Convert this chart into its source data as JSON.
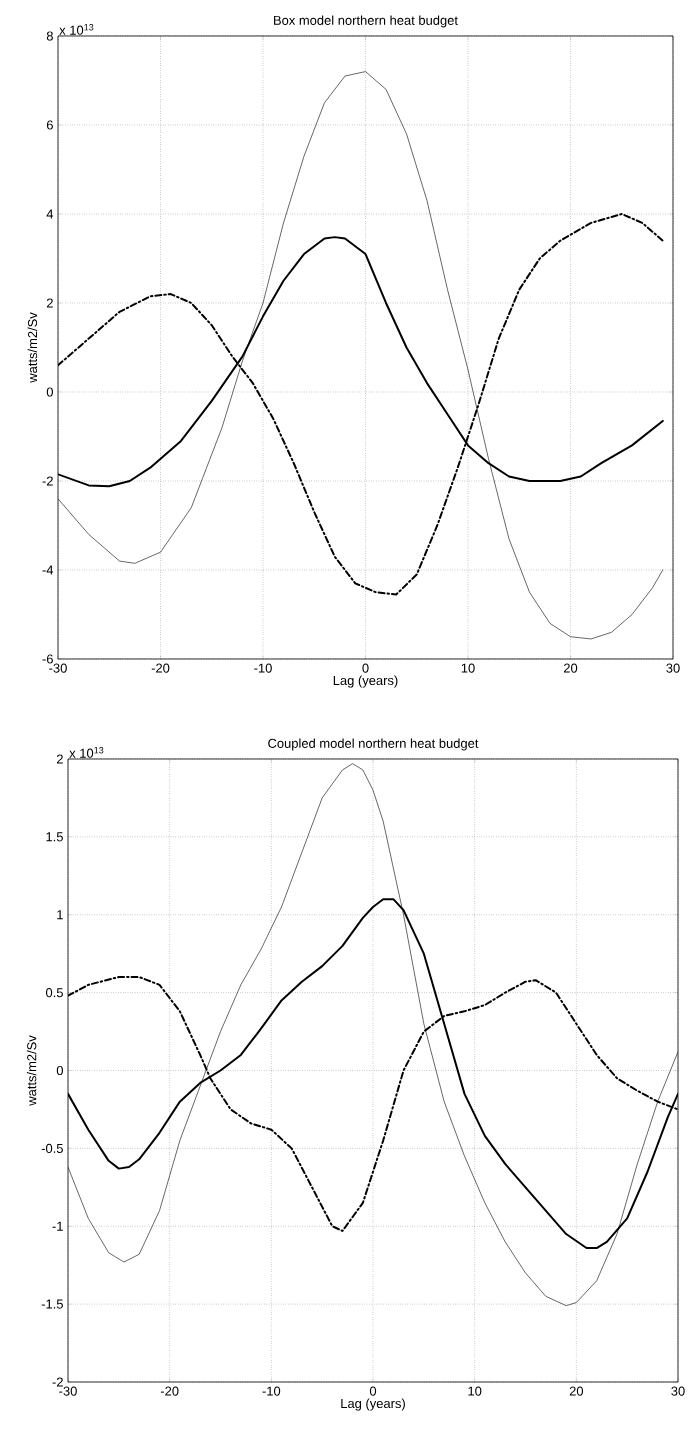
{
  "chart_data": [
    {
      "type": "line",
      "title": "Box model northern heat budget",
      "xlabel": "Lag (years)",
      "ylabel": "watts/m2/Sv",
      "annotations": [
        "x 10$^{13}$"
      ],
      "xlim": [
        -30,
        30
      ],
      "xticks": [
        -30,
        -20,
        -10,
        0,
        10,
        20,
        30
      ],
      "ylim": [
        -6,
        8
      ],
      "yticks": [
        -6,
        -4,
        -2,
        0,
        2,
        4,
        6,
        8
      ],
      "grid": true,
      "marker": "none",
      "series": [
        {
          "color": "#000000",
          "line_style": "solid",
          "x": [
            -30,
            -27,
            -24,
            -22.5,
            -20,
            -17,
            -14,
            -12,
            -10,
            -8,
            -6,
            -4,
            -2,
            0,
            2,
            4,
            6,
            8,
            10,
            12,
            14,
            16,
            18,
            20,
            22,
            24,
            26,
            28,
            29
          ],
          "values": [
            -2.4,
            -3.2,
            -3.8,
            -3.85,
            -3.6,
            -2.6,
            -0.8,
            0.7,
            2.0,
            3.8,
            5.3,
            6.5,
            7.1,
            7.2,
            6.8,
            5.8,
            4.3,
            2.3,
            0.5,
            -1.5,
            -3.3,
            -4.5,
            -5.2,
            -5.5,
            -5.55,
            -5.4,
            -5.0,
            -4.4,
            -4.0
          ]
        },
        {
          "color": "#000000",
          "line_style": "solid",
          "x": [
            -30,
            -27,
            -25,
            -23,
            -21,
            -18,
            -15,
            -12,
            -10,
            -8,
            -6,
            -4,
            -3,
            -2,
            0,
            2,
            4,
            6,
            8,
            10,
            12,
            14,
            16,
            19,
            21,
            23,
            26,
            29
          ],
          "values": [
            -1.85,
            -2.1,
            -2.12,
            -2.0,
            -1.7,
            -1.1,
            -0.2,
            0.8,
            1.7,
            2.5,
            3.1,
            3.45,
            3.48,
            3.45,
            3.1,
            2.0,
            1.0,
            0.2,
            -0.5,
            -1.2,
            -1.6,
            -1.9,
            -2.0,
            -2.0,
            -1.9,
            -1.6,
            -1.2,
            -0.65
          ]
        },
        {
          "color": "#000000",
          "line_style": "dashdot",
          "x": [
            -30,
            -27,
            -24,
            -21,
            -19,
            -17,
            -15,
            -13,
            -11,
            -9,
            -7,
            -5,
            -3,
            -1,
            1,
            3,
            5,
            7,
            9,
            11,
            13,
            15,
            17,
            19,
            22,
            25,
            27,
            29
          ],
          "values": [
            0.6,
            1.2,
            1.8,
            2.15,
            2.2,
            2.0,
            1.5,
            0.8,
            0.2,
            -0.6,
            -1.6,
            -2.7,
            -3.7,
            -4.3,
            -4.5,
            -4.55,
            -4.1,
            -3.0,
            -1.7,
            -0.3,
            1.2,
            2.3,
            3.0,
            3.4,
            3.8,
            4.0,
            3.8,
            3.4
          ]
        }
      ]
    },
    {
      "type": "line",
      "title": "Coupled model northern heat budget",
      "xlabel": "Lag (years)",
      "ylabel": "watts/m2/Sv",
      "annotations": [
        "x 10$^{13}$"
      ],
      "xlim": [
        -30,
        30
      ],
      "xticks": [
        -30,
        -20,
        -10,
        0,
        10,
        20,
        30
      ],
      "ylim": [
        -2,
        2
      ],
      "yticks": [
        -2,
        -1.5,
        -1,
        -0.5,
        0,
        0.5,
        1,
        1.5,
        2
      ],
      "grid": true,
      "marker": "none",
      "series": [
        {
          "color": "#000000",
          "line_style": "solid",
          "x": [
            -30,
            -28,
            -26,
            -24.5,
            -23,
            -21,
            -19,
            -17,
            -15,
            -13,
            -11,
            -9,
            -7,
            -5,
            -3,
            -2,
            -1,
            0,
            1,
            3,
            5,
            7,
            9,
            11,
            13,
            15,
            17,
            19,
            20,
            22,
            24,
            26,
            28,
            30
          ],
          "values": [
            -0.62,
            -0.95,
            -1.17,
            -1.23,
            -1.18,
            -0.9,
            -0.45,
            -0.1,
            0.25,
            0.55,
            0.78,
            1.05,
            1.4,
            1.75,
            1.93,
            1.97,
            1.93,
            1.8,
            1.6,
            1.0,
            0.3,
            -0.2,
            -0.55,
            -0.85,
            -1.1,
            -1.3,
            -1.45,
            -1.51,
            -1.49,
            -1.35,
            -1.05,
            -0.6,
            -0.2,
            0.12
          ]
        },
        {
          "color": "#000000",
          "line_style": "solid",
          "x": [
            -30,
            -28,
            -26,
            -25,
            -24,
            -23,
            -21,
            -19,
            -17,
            -15,
            -13,
            -11,
            -9,
            -7,
            -5,
            -3,
            -1,
            0,
            1,
            2,
            3,
            5,
            7,
            9,
            11,
            13,
            15,
            17,
            19,
            21,
            22,
            23,
            25,
            27,
            29,
            30
          ],
          "values": [
            -0.15,
            -0.38,
            -0.58,
            -0.63,
            -0.62,
            -0.57,
            -0.4,
            -0.2,
            -0.08,
            0.0,
            0.1,
            0.27,
            0.45,
            0.57,
            0.67,
            0.8,
            0.98,
            1.05,
            1.1,
            1.1,
            1.03,
            0.75,
            0.3,
            -0.15,
            -0.42,
            -0.6,
            -0.75,
            -0.9,
            -1.05,
            -1.14,
            -1.14,
            -1.1,
            -0.95,
            -0.65,
            -0.3,
            -0.15
          ]
        },
        {
          "color": "#000000",
          "line_style": "dashdot",
          "x": [
            -30,
            -28,
            -25,
            -23,
            -21,
            -19,
            -17,
            -16,
            -14,
            -12,
            -10,
            -8,
            -6,
            -4,
            -3,
            -1,
            0,
            1,
            3,
            5,
            7,
            9,
            11,
            13,
            15,
            16,
            18,
            20,
            22,
            24,
            26,
            28,
            30
          ],
          "values": [
            0.48,
            0.55,
            0.6,
            0.6,
            0.55,
            0.38,
            0.1,
            -0.05,
            -0.25,
            -0.34,
            -0.38,
            -0.5,
            -0.75,
            -1.0,
            -1.03,
            -0.85,
            -0.65,
            -0.45,
            0.0,
            0.25,
            0.35,
            0.38,
            0.42,
            0.5,
            0.57,
            0.58,
            0.5,
            0.3,
            0.1,
            -0.05,
            -0.13,
            -0.2,
            -0.25
          ]
        }
      ]
    }
  ]
}
